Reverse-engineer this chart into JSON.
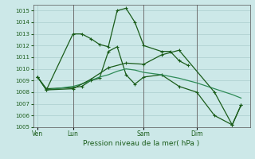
{
  "background_color": "#cce8e8",
  "grid_color": "#aacece",
  "line_color_dark": "#1a5c1a",
  "line_color_light": "#2e8b57",
  "title": "Pression niveau de la mer( hPa )",
  "xlabel_ticks": [
    "Ven",
    "Lun",
    "Sam",
    "Dim"
  ],
  "xlabel_tick_positions": [
    0,
    4,
    12,
    18
  ],
  "ylim": [
    1005,
    1015.5
  ],
  "yticks": [
    1005,
    1006,
    1007,
    1008,
    1009,
    1010,
    1011,
    1012,
    1013,
    1014,
    1015
  ],
  "series1_dark": {
    "x": [
      0,
      1,
      4,
      5,
      6,
      7,
      8,
      9,
      10,
      11,
      12,
      14,
      15,
      16,
      17
    ],
    "y": [
      1009.3,
      1008.2,
      1013.0,
      1013.0,
      1012.6,
      1012.1,
      1011.9,
      1015.0,
      1015.2,
      1014.0,
      1012.0,
      1011.5,
      1011.5,
      1010.7,
      1010.3
    ]
  },
  "series2_dark": {
    "x": [
      0,
      1,
      4,
      5,
      6,
      7,
      8,
      9,
      10,
      11,
      12,
      14,
      16,
      18,
      20,
      22,
      23
    ],
    "y": [
      1009.3,
      1008.3,
      1008.4,
      1008.5,
      1009.0,
      1009.2,
      1011.5,
      1011.9,
      1009.5,
      1008.7,
      1009.3,
      1009.5,
      1008.5,
      1008.0,
      1006.0,
      1005.2,
      1006.9
    ]
  },
  "series3_light": {
    "x": [
      0,
      1,
      4,
      5,
      6,
      7,
      8,
      9,
      10,
      11,
      12,
      14,
      16,
      18,
      20,
      22,
      23
    ],
    "y": [
      1009.3,
      1008.2,
      1008.5,
      1008.7,
      1009.0,
      1009.3,
      1009.5,
      1009.8,
      1010.0,
      1009.9,
      1009.7,
      1009.5,
      1009.2,
      1008.8,
      1008.3,
      1007.8,
      1007.5
    ]
  },
  "series4_dark": {
    "x": [
      0,
      1,
      4,
      6,
      8,
      10,
      12,
      14,
      16,
      20,
      22,
      23
    ],
    "y": [
      1009.3,
      1008.2,
      1008.3,
      1009.1,
      1010.1,
      1010.5,
      1010.4,
      1011.2,
      1011.6,
      1008.0,
      1005.2,
      1006.9
    ]
  },
  "vlines_x": [
    4,
    12,
    18
  ],
  "vline_color": "#707070",
  "marker": "+",
  "marker_size": 3,
  "line_width": 0.9
}
